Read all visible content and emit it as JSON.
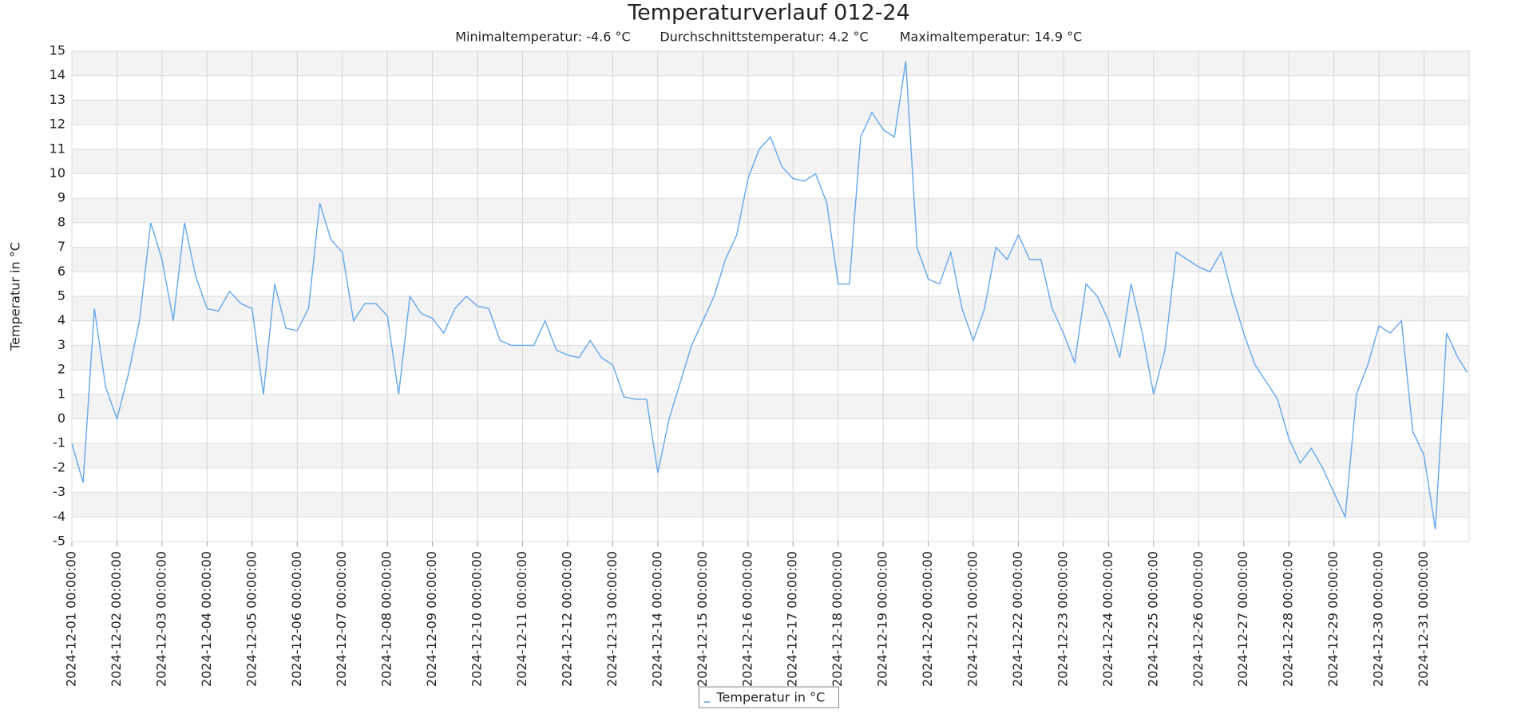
{
  "chart_data": {
    "type": "line",
    "title": "Temperaturverlauf 012-24",
    "subtitle": [
      "Minimaltemperatur: -4.6 °C",
      "Durchschnittstemperatur: 4.2 °C",
      "Maximaltemperatur: 14.9 °C"
    ],
    "y_label": "Temperatur in °C",
    "x": [
      "2024-12-01 00:00:00",
      "2024-12-01 06:00:00",
      "2024-12-01 12:00:00",
      "2024-12-01 18:00:00",
      "2024-12-02 00:00:00",
      "2024-12-02 06:00:00",
      "2024-12-02 12:00:00",
      "2024-12-02 18:00:00",
      "2024-12-03 00:00:00",
      "2024-12-03 06:00:00",
      "2024-12-03 12:00:00",
      "2024-12-03 18:00:00",
      "2024-12-04 00:00:00",
      "2024-12-04 06:00:00",
      "2024-12-04 12:00:00",
      "2024-12-04 18:00:00",
      "2024-12-05 00:00:00",
      "2024-12-05 06:00:00",
      "2024-12-05 12:00:00",
      "2024-12-05 18:00:00",
      "2024-12-06 00:00:00",
      "2024-12-06 06:00:00",
      "2024-12-06 12:00:00",
      "2024-12-06 18:00:00",
      "2024-12-07 00:00:00",
      "2024-12-07 06:00:00",
      "2024-12-07 12:00:00",
      "2024-12-07 18:00:00",
      "2024-12-08 00:00:00",
      "2024-12-08 06:00:00",
      "2024-12-08 12:00:00",
      "2024-12-08 18:00:00",
      "2024-12-09 00:00:00",
      "2024-12-09 06:00:00",
      "2024-12-09 12:00:00",
      "2024-12-09 18:00:00",
      "2024-12-10 00:00:00",
      "2024-12-10 06:00:00",
      "2024-12-10 12:00:00",
      "2024-12-10 18:00:00",
      "2024-12-11 00:00:00",
      "2024-12-11 06:00:00",
      "2024-12-11 12:00:00",
      "2024-12-11 18:00:00",
      "2024-12-12 00:00:00",
      "2024-12-12 06:00:00",
      "2024-12-12 12:00:00",
      "2024-12-12 18:00:00",
      "2024-12-13 00:00:00",
      "2024-12-13 06:00:00",
      "2024-12-13 12:00:00",
      "2024-12-13 18:00:00",
      "2024-12-14 00:00:00",
      "2024-12-14 06:00:00",
      "2024-12-14 12:00:00",
      "2024-12-14 18:00:00",
      "2024-12-15 00:00:00",
      "2024-12-15 06:00:00",
      "2024-12-15 12:00:00",
      "2024-12-15 18:00:00",
      "2024-12-16 00:00:00",
      "2024-12-16 06:00:00",
      "2024-12-16 12:00:00",
      "2024-12-16 18:00:00",
      "2024-12-17 00:00:00",
      "2024-12-17 06:00:00",
      "2024-12-17 12:00:00",
      "2024-12-17 18:00:00",
      "2024-12-18 00:00:00",
      "2024-12-18 06:00:00",
      "2024-12-18 12:00:00",
      "2024-12-18 18:00:00",
      "2024-12-19 00:00:00",
      "2024-12-19 06:00:00",
      "2024-12-19 12:00:00",
      "2024-12-19 18:00:00",
      "2024-12-20 00:00:00",
      "2024-12-20 06:00:00",
      "2024-12-20 12:00:00",
      "2024-12-20 18:00:00",
      "2024-12-21 00:00:00",
      "2024-12-21 06:00:00",
      "2024-12-21 12:00:00",
      "2024-12-21 18:00:00",
      "2024-12-22 00:00:00",
      "2024-12-22 06:00:00",
      "2024-12-22 12:00:00",
      "2024-12-22 18:00:00",
      "2024-12-23 00:00:00",
      "2024-12-23 06:00:00",
      "2024-12-23 12:00:00",
      "2024-12-23 18:00:00",
      "2024-12-24 00:00:00",
      "2024-12-24 06:00:00",
      "2024-12-24 12:00:00",
      "2024-12-24 18:00:00",
      "2024-12-25 00:00:00",
      "2024-12-25 06:00:00",
      "2024-12-25 12:00:00",
      "2024-12-25 18:00:00",
      "2024-12-26 00:00:00",
      "2024-12-26 06:00:00",
      "2024-12-26 12:00:00",
      "2024-12-26 18:00:00",
      "2024-12-27 00:00:00",
      "2024-12-27 06:00:00",
      "2024-12-27 12:00:00",
      "2024-12-27 18:00:00",
      "2024-12-28 00:00:00",
      "2024-12-28 06:00:00",
      "2024-12-28 12:00:00",
      "2024-12-28 18:00:00",
      "2024-12-29 00:00:00",
      "2024-12-29 06:00:00",
      "2024-12-29 12:00:00",
      "2024-12-29 18:00:00",
      "2024-12-30 00:00:00",
      "2024-12-30 06:00:00",
      "2024-12-30 12:00:00",
      "2024-12-30 18:00:00",
      "2024-12-31 00:00:00",
      "2024-12-31 06:00:00",
      "2024-12-31 12:00:00",
      "2024-12-31 18:00:00",
      "2024-12-31 23:00:00"
    ],
    "series": [
      {
        "name": "Temperatur in °C",
        "color": "#64a8ec",
        "values": [
          -1.0,
          -2.6,
          4.5,
          1.3,
          0.0,
          1.8,
          4.0,
          8.0,
          6.5,
          4.0,
          8.0,
          5.8,
          4.5,
          4.4,
          5.2,
          4.7,
          4.5,
          1.0,
          5.5,
          3.7,
          3.6,
          4.5,
          8.8,
          7.3,
          6.8,
          4.0,
          4.7,
          4.7,
          4.2,
          1.0,
          5.0,
          4.3,
          4.1,
          3.5,
          4.5,
          5.0,
          4.6,
          4.5,
          3.2,
          3.0,
          3.0,
          3.0,
          4.0,
          2.8,
          2.6,
          2.5,
          3.2,
          2.5,
          2.2,
          0.9,
          0.8,
          0.8,
          -2.2,
          0.0,
          1.5,
          3.0,
          4.0,
          5.0,
          6.5,
          7.5,
          9.8,
          11.0,
          11.5,
          10.3,
          9.8,
          9.7,
          10.0,
          8.8,
          5.5,
          5.5,
          11.5,
          12.5,
          11.8,
          11.5,
          14.6,
          7.0,
          5.7,
          5.5,
          6.8,
          4.5,
          3.2,
          4.5,
          7.0,
          6.5,
          7.5,
          6.5,
          6.5,
          4.5,
          3.5,
          2.3,
          5.5,
          5.0,
          4.0,
          2.5,
          5.5,
          3.5,
          1.0,
          2.8,
          6.8,
          6.5,
          6.2,
          6.0,
          6.8,
          5.0,
          3.5,
          2.2,
          1.5,
          0.8,
          -0.8,
          -1.8,
          -1.2,
          -2.0,
          -3.0,
          -4.0,
          1.0,
          2.2,
          3.8,
          3.5,
          4.0,
          -0.5,
          -1.5,
          -4.5,
          3.5,
          2.5,
          1.9
        ]
      }
    ],
    "xlim": [
      "2024-12-01 00:00:00",
      "2025-01-01 00:00:00"
    ],
    "xticks": [
      "2024-12-01 00:00:00",
      "2024-12-02 00:00:00",
      "2024-12-03 00:00:00",
      "2024-12-04 00:00:00",
      "2024-12-05 00:00:00",
      "2024-12-06 00:00:00",
      "2024-12-07 00:00:00",
      "2024-12-08 00:00:00",
      "2024-12-09 00:00:00",
      "2024-12-10 00:00:00",
      "2024-12-11 00:00:00",
      "2024-12-12 00:00:00",
      "2024-12-13 00:00:00",
      "2024-12-14 00:00:00",
      "2024-12-15 00:00:00",
      "2024-12-16 00:00:00",
      "2024-12-17 00:00:00",
      "2024-12-18 00:00:00",
      "2024-12-19 00:00:00",
      "2024-12-20 00:00:00",
      "2024-12-21 00:00:00",
      "2024-12-22 00:00:00",
      "2024-12-23 00:00:00",
      "2024-12-24 00:00:00",
      "2024-12-25 00:00:00",
      "2024-12-26 00:00:00",
      "2024-12-27 00:00:00",
      "2024-12-28 00:00:00",
      "2024-12-29 00:00:00",
      "2024-12-30 00:00:00",
      "2024-12-31 00:00:00"
    ],
    "ylim": [
      -5,
      15
    ],
    "yticks": [
      -5,
      -4,
      -3,
      -2,
      -1,
      0,
      1,
      2,
      3,
      4,
      5,
      6,
      7,
      8,
      9,
      10,
      11,
      12,
      13,
      14,
      15
    ],
    "grid": true,
    "legend": "bottom"
  }
}
